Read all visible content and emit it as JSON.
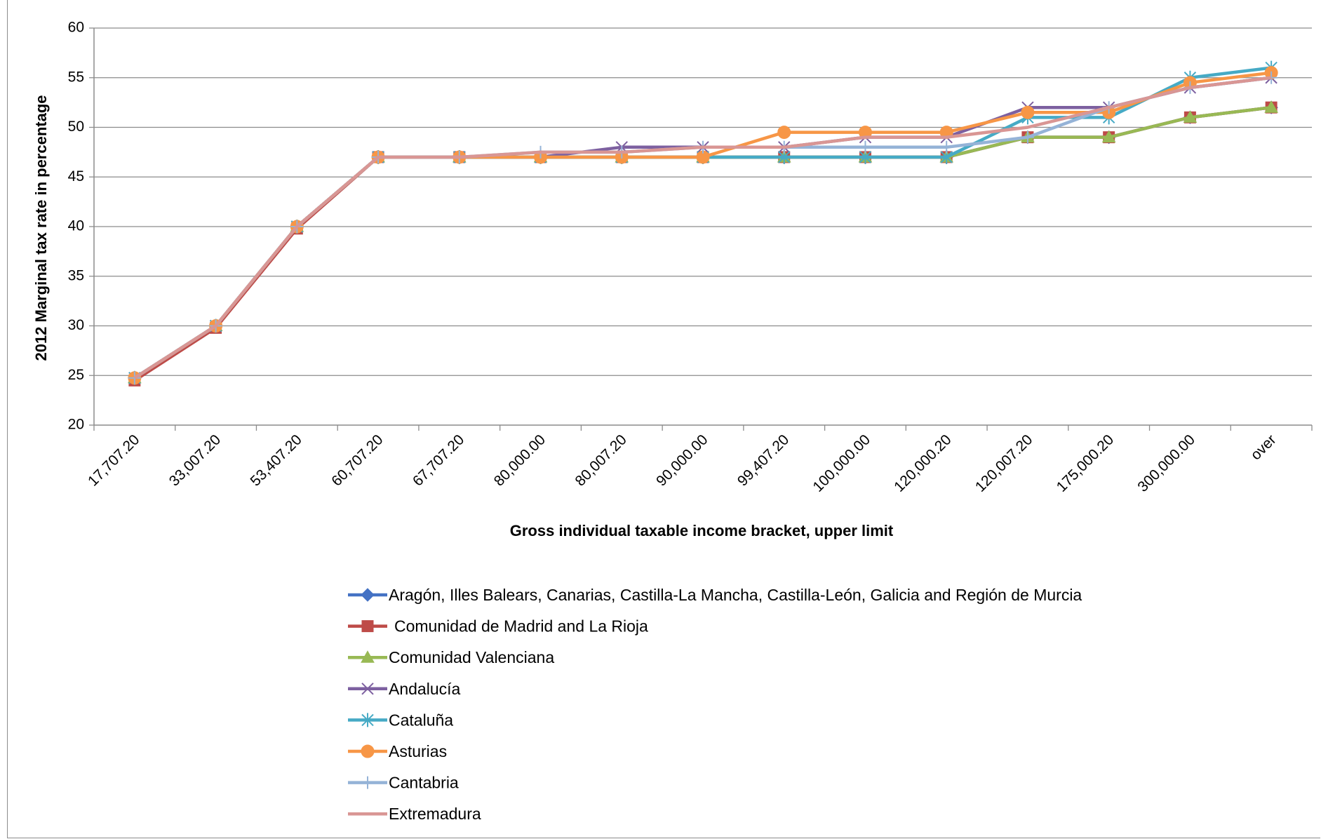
{
  "chart_data": {
    "type": "line",
    "xlabel": "Gross individual taxable income bracket, upper limit",
    "ylabel": "2012 Marginal tax rate in percentage",
    "ylim": [
      20,
      60
    ],
    "yticks": [
      "20",
      "25",
      "30",
      "35",
      "40",
      "45",
      "50",
      "55",
      "60"
    ],
    "categories": [
      "17,707.20",
      "33,007.20",
      "53,407.20",
      "60,707.20",
      "67,707.20",
      "80,000.00",
      "80,007.20",
      "90,000.00",
      "99,407.20",
      "100,000.00",
      "120,000.20",
      "120,007.20",
      "175,000.20",
      "300,000.00",
      "over"
    ],
    "grid": "horizontal",
    "legend_position": "bottom",
    "series": [
      {
        "name": "Aragón, Illes Balears, Canarias, Castilla-La Mancha, Castilla-León, Galicia and Región de Murcia",
        "color": "#4472c4",
        "marker": "diamond",
        "values": [
          24.75,
          30,
          40,
          47,
          47,
          47,
          47,
          47,
          47,
          47,
          47,
          49,
          49,
          51,
          52
        ]
      },
      {
        "name": "Comunidad de Madrid and La Rioja",
        "color": "#be4b48",
        "marker": "square",
        "values": [
          24.5,
          29.8,
          39.8,
          47,
          47,
          47,
          47,
          47,
          47,
          47,
          47,
          49,
          49,
          51,
          52
        ]
      },
      {
        "name": "Comunidad Valenciana",
        "color": "#98b954",
        "marker": "triangle",
        "values": [
          24.75,
          30,
          40,
          47,
          47,
          47,
          47,
          47,
          47,
          47,
          47,
          49,
          49,
          51,
          52
        ]
      },
      {
        "name": "Andalucía",
        "color": "#7d60a0",
        "marker": "x",
        "values": [
          24.75,
          30,
          40,
          47,
          47,
          47,
          48,
          48,
          48,
          49,
          49,
          52,
          52,
          54,
          55
        ]
      },
      {
        "name": "Cataluña",
        "color": "#46aac5",
        "marker": "asterisk",
        "values": [
          24.75,
          30,
          40,
          47,
          47,
          47,
          47,
          47,
          47,
          47,
          47,
          51,
          51,
          55,
          56
        ]
      },
      {
        "name": "Asturias",
        "color": "#f79646",
        "marker": "circle",
        "values": [
          24.75,
          30,
          40,
          47,
          47,
          47,
          47,
          47,
          49.5,
          49.5,
          49.5,
          51.5,
          51.5,
          54.5,
          55.5
        ]
      },
      {
        "name": "Cantabria",
        "color": "#95b3d7",
        "marker": "plus",
        "values": [
          24.75,
          30,
          40,
          47,
          47,
          47.5,
          47.5,
          48,
          48,
          48,
          48,
          49,
          52,
          54,
          55
        ]
      },
      {
        "name": "Extremadura",
        "color": "#d99694",
        "marker": "none",
        "values": [
          24.75,
          30,
          40,
          47,
          47,
          47.5,
          47.5,
          48,
          48,
          49,
          49,
          50,
          52,
          54,
          55
        ]
      }
    ]
  }
}
